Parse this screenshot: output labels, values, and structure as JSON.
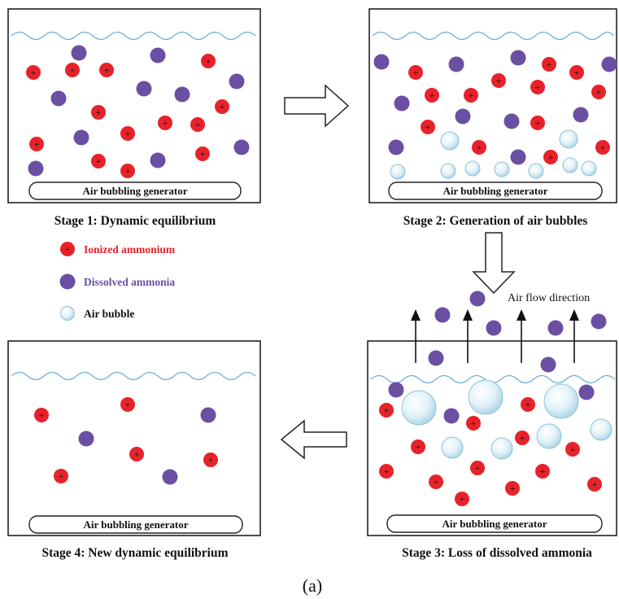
{
  "colors": {
    "ion": "#e8222a",
    "ammonia": "#6b4fa3",
    "bubble": "#cfe8f2",
    "water": "#6fb0d8"
  },
  "generator_label": "Air bubbling generator",
  "stages": [
    {
      "label": "Stage 1: Dynamic equilibrium"
    },
    {
      "label": "Stage 2: Generation of air bubbles"
    },
    {
      "label": "Stage 3: Loss of dissolved ammonia"
    },
    {
      "label": "Stage 4: New dynamic equilibrium"
    }
  ],
  "legend": [
    {
      "label": "Ionized ammonium",
      "icon": "ionized-ammonium-icon",
      "color": "#e8222a"
    },
    {
      "label": "Dissolved ammonia",
      "icon": "dissolved-ammonia-icon",
      "color": "#6b4fa3"
    },
    {
      "label": "Air bubble",
      "icon": "air-bubble-icon",
      "color": "#111111"
    }
  ],
  "air_flow_label": "Air flow direction",
  "caption": "(a)"
}
